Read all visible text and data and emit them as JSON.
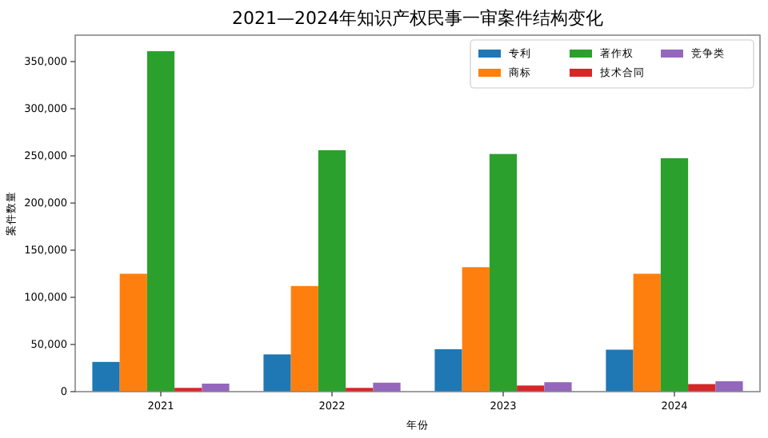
{
  "chart_data": {
    "type": "bar",
    "title": "2021—2024年知识产权民事一审案件结构变化",
    "xlabel": "年份",
    "ylabel": "案件数量",
    "categories": [
      "2021",
      "2022",
      "2023",
      "2024"
    ],
    "series": [
      {
        "name": "专利",
        "color": "#1f77b4",
        "values": [
          31500,
          39500,
          45000,
          44500
        ]
      },
      {
        "name": "商标",
        "color": "#ff7f0e",
        "values": [
          125000,
          112000,
          132000,
          125000
        ]
      },
      {
        "name": "著作权",
        "color": "#2ca02c",
        "values": [
          361000,
          256000,
          252000,
          247500
        ]
      },
      {
        "name": "技术合同",
        "color": "#d62728",
        "values": [
          4000,
          4000,
          6500,
          8000
        ]
      },
      {
        "name": "竞争类",
        "color": "#9467bd",
        "values": [
          8500,
          9500,
          10000,
          11000
        ]
      }
    ],
    "ylim": [
      0,
      378000
    ],
    "yticks": [
      {
        "value": 0,
        "label": "0"
      },
      {
        "value": 50000,
        "label": "50,000"
      },
      {
        "value": 100000,
        "label": "100,000"
      },
      {
        "value": 150000,
        "label": "150,000"
      },
      {
        "value": 200000,
        "label": "200,000"
      },
      {
        "value": 250000,
        "label": "250,000"
      },
      {
        "value": 300000,
        "label": "300,000"
      },
      {
        "value": 350000,
        "label": "350,000"
      }
    ],
    "legend": "top right"
  }
}
